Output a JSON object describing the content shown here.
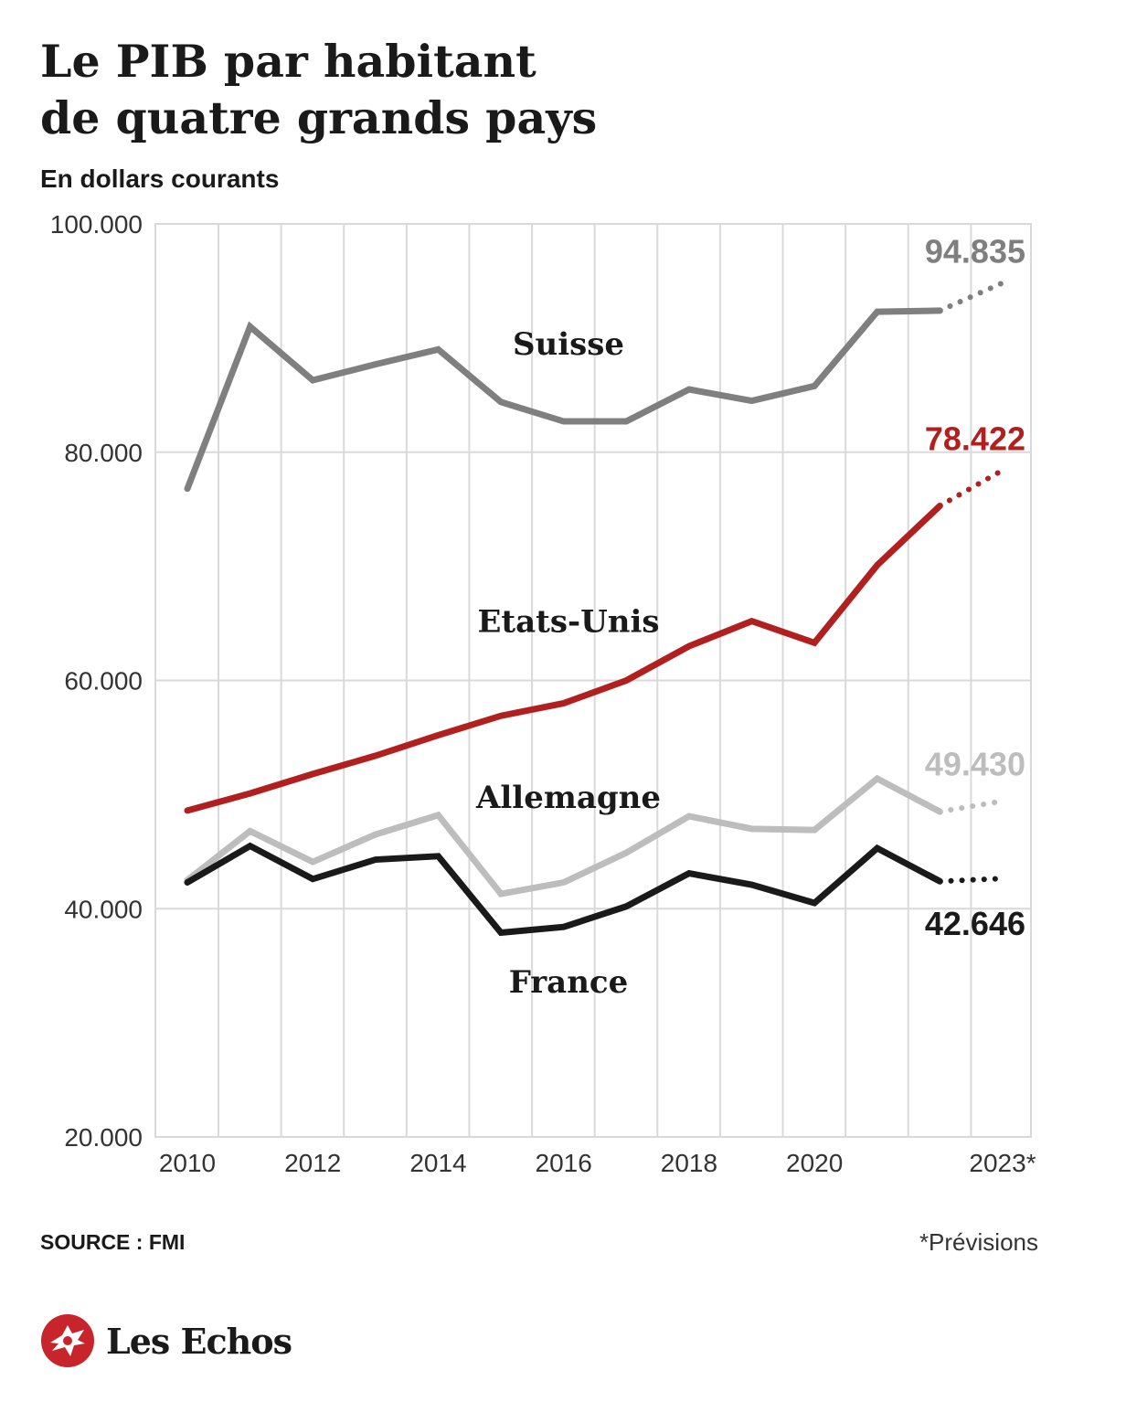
{
  "header": {
    "title_line1": "Le PIB par habitant",
    "title_line2": "de quatre grands pays",
    "subtitle": "En dollars courants"
  },
  "footer": {
    "source": "SOURCE : FMI",
    "note": "*Prévisions",
    "logo_text": "Les Echos",
    "logo_icon": "les-echos-logo-icon",
    "logo_color": "#c8242b"
  },
  "chart_data": {
    "type": "line",
    "title": "Le PIB par habitant de quatre grands pays",
    "subtitle": "En dollars courants",
    "xlabel": "",
    "ylabel": "",
    "x": [
      2010,
      2011,
      2012,
      2013,
      2014,
      2015,
      2016,
      2017,
      2018,
      2019,
      2020,
      2021,
      2022,
      2023
    ],
    "xlim": [
      2010,
      2023
    ],
    "ylim": [
      20000,
      100000
    ],
    "x_ticks": [
      {
        "value": 2010,
        "label": "2010"
      },
      {
        "value": 2012,
        "label": "2012"
      },
      {
        "value": 2014,
        "label": "2014"
      },
      {
        "value": 2016,
        "label": "2016"
      },
      {
        "value": 2018,
        "label": "2018"
      },
      {
        "value": 2020,
        "label": "2020"
      },
      {
        "value": 2023,
        "label": "2023*"
      }
    ],
    "y_ticks": [
      {
        "value": 100000,
        "label": "100.000"
      },
      {
        "value": 80000,
        "label": "80.000"
      },
      {
        "value": 60000,
        "label": "60.000"
      },
      {
        "value": 40000,
        "label": "40.000"
      },
      {
        "value": 20000,
        "label": "20.000"
      }
    ],
    "grid": true,
    "forecast_from": 2022,
    "series": [
      {
        "name": "Suisse",
        "color": "#7f7f7f",
        "values": [
          76800,
          91000,
          86300,
          87700,
          89000,
          84400,
          82700,
          82700,
          85500,
          84500,
          85800,
          92300,
          92400,
          94835
        ],
        "end_label": "94.835",
        "label_value": 89500
      },
      {
        "name": "Etats-Unis",
        "color": "#b1201f",
        "values": [
          48600,
          50100,
          51800,
          53400,
          55200,
          56900,
          58000,
          60000,
          63000,
          65200,
          63300,
          70100,
          75300,
          78422
        ],
        "end_label": "78.422",
        "label_value": 65200
      },
      {
        "name": "Allemagne",
        "color": "#bdbdbd",
        "values": [
          42500,
          46800,
          44100,
          46500,
          48200,
          41300,
          42300,
          44900,
          48100,
          47000,
          46900,
          51400,
          48500,
          49430
        ],
        "end_label": "49.430",
        "label_value": 49800
      },
      {
        "name": "France",
        "color": "#1a1a1a",
        "values": [
          42300,
          45500,
          42600,
          44300,
          44600,
          37900,
          38400,
          40200,
          43100,
          42100,
          40500,
          45300,
          42400,
          42646
        ],
        "end_label": "42.646",
        "label_value": 33600
      }
    ]
  }
}
